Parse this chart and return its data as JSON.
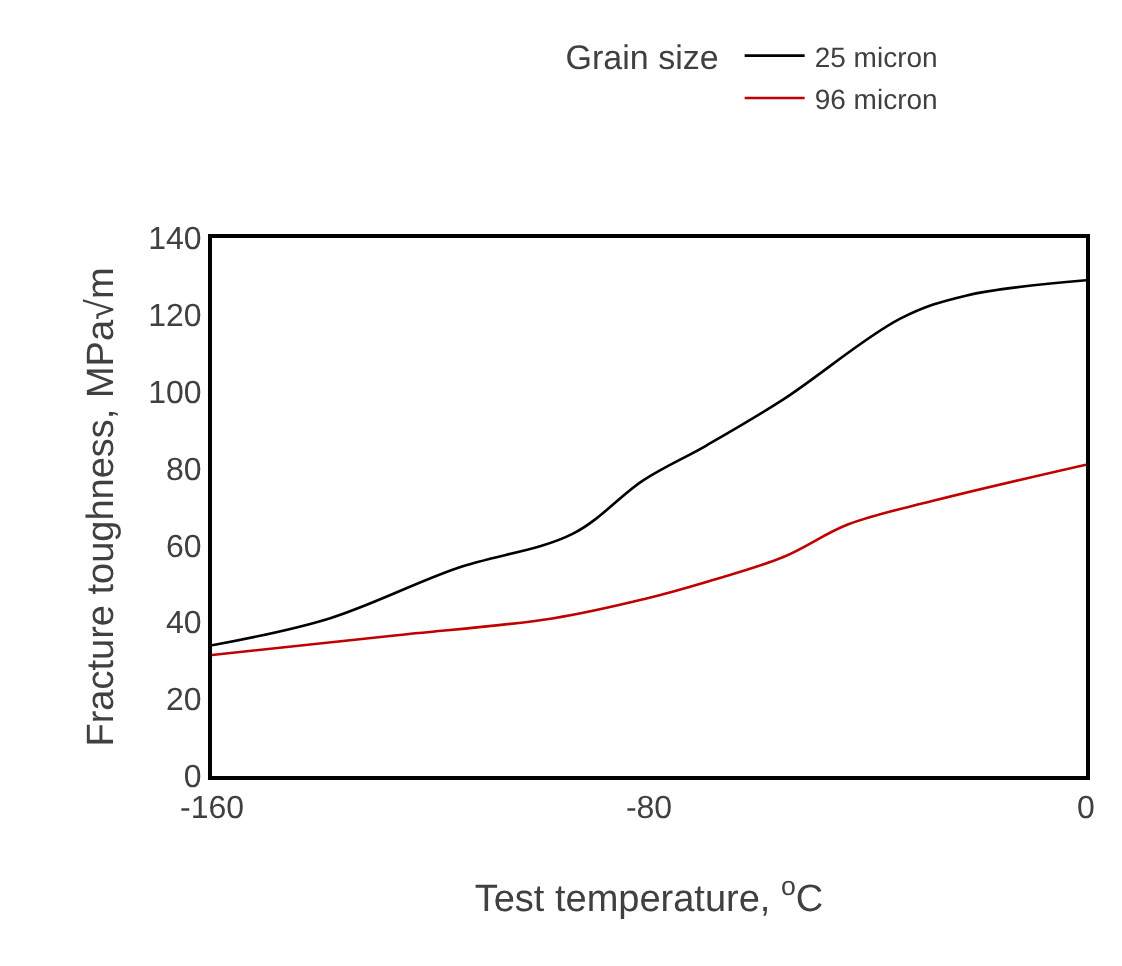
{
  "chart_data": {
    "type": "line",
    "legend_title": "Grain size",
    "xlabel": "Test temperature, $^{o}$C",
    "ylabel": "Fracture toughness, MPa√m",
    "xlim": [
      -160,
      0
    ],
    "xticks": [
      -160,
      -80,
      0
    ],
    "ylim": [
      0,
      140
    ],
    "yticks": [
      0,
      20,
      40,
      60,
      80,
      100,
      120,
      140
    ],
    "grid": false,
    "legend": "top right",
    "marker": "none",
    "line_style": "solid",
    "series": [
      {
        "name": "25 micron",
        "color": "#000000",
        "x": [
          -160,
          -138.5,
          -115.3,
          -94,
          -81,
          -69.5,
          -55.4,
          -34,
          -22,
          0
        ],
        "values": [
          34,
          41,
          54,
          63,
          77,
          86,
          98,
          119,
          125,
          129
        ]
      },
      {
        "name": "96 micron",
        "color": "#c00000",
        "x": [
          -160,
          -127,
          -97.7,
          -81,
          -69.5,
          -55.4,
          -43.5,
          -28,
          0
        ],
        "values": [
          31.5,
          36.5,
          41,
          46,
          50.5,
          57,
          65.5,
          71.6,
          81
        ]
      }
    ]
  }
}
